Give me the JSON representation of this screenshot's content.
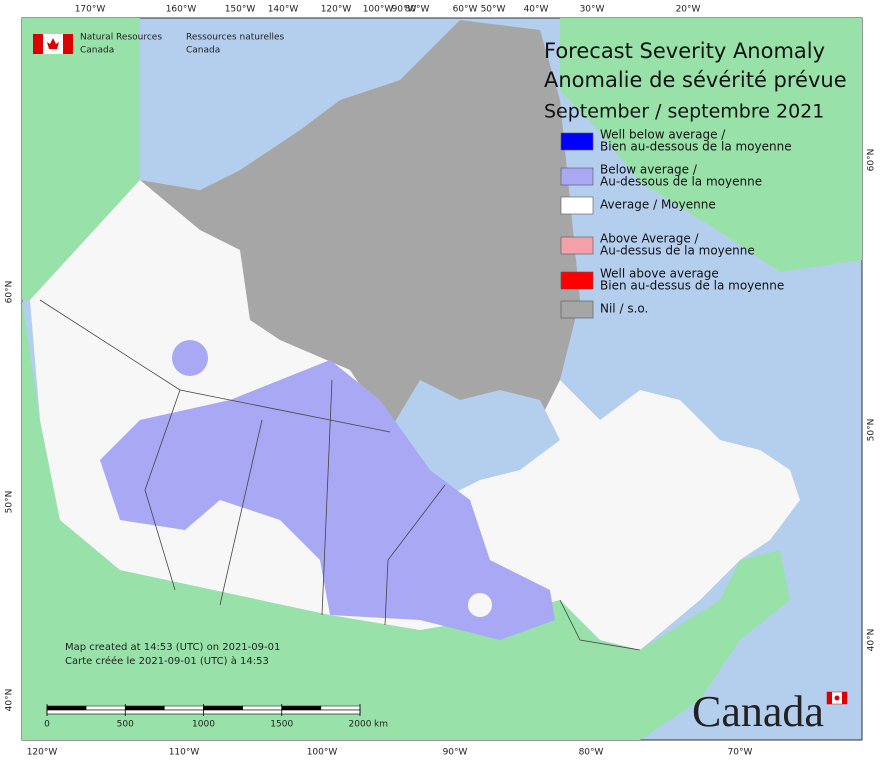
{
  "header": {
    "org_en": [
      "Natural Resources",
      "Canada"
    ],
    "org_fr": [
      "Ressources naturelles",
      "Canada"
    ]
  },
  "title": [
    "Forecast Severity Anomaly",
    "Anomalie de sévérité prévue",
    "September / septembre 2021"
  ],
  "legend": [
    {
      "label": [
        "Well below average /",
        "Bien au-dessous de la moyenne"
      ],
      "color": "#0000ff"
    },
    {
      "label": [
        "Below average /",
        "Au-dessous de la moyenne"
      ],
      "color": "#a8a8f5"
    },
    {
      "label": [
        "Average / Moyenne"
      ],
      "color": "#ffffff"
    },
    {
      "label": [
        "Above Average /",
        "Au-dessus de la moyenne"
      ],
      "color": "#f4a0a8"
    },
    {
      "label": [
        "Well above average",
        "Bien au-dessus de la moyenne"
      ],
      "color": "#ff0000"
    },
    {
      "label": [
        "Nil / s.o."
      ],
      "color": "#a6a6a6"
    }
  ],
  "graticule": {
    "top": [
      "170°W",
      "160°W",
      "150°W",
      "140°W",
      "120°W",
      "100°W",
      "90°W",
      "80°W",
      "60°W",
      "50°W",
      "40°W",
      "30°W",
      "20°W"
    ],
    "bottom": [
      "120°W",
      "110°W",
      "100°W",
      "90°W",
      "80°W",
      "70°W"
    ],
    "left": [
      "60°N",
      "50°N",
      "40°N"
    ],
    "right": [
      "60°N",
      "50°N",
      "40°N"
    ]
  },
  "notes": [
    "Map created at 14:53 (UTC) on 2021-09-01",
    "Carte créée le 2021-09-01 (UTC) à 14:53"
  ],
  "scale": {
    "ticks": [
      0,
      500,
      1000,
      1500,
      2000
    ],
    "unit": "km"
  },
  "wordmark": "Canada"
}
